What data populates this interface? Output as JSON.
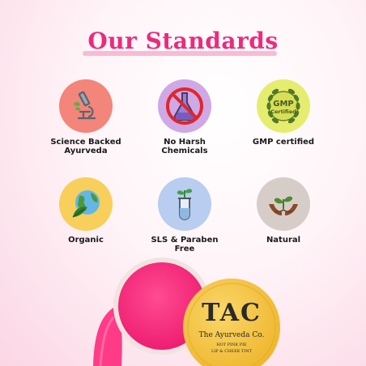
{
  "header": {
    "title": "Our Standards"
  },
  "standards": [
    {
      "label": "Science Backed\nAyurveda",
      "icon": "microscope-icon",
      "color": "#f3857a"
    },
    {
      "label": "No Harsh\nChemicals",
      "icon": "no-chemicals-icon",
      "color": "#cfa8e6"
    },
    {
      "label": "GMP certified",
      "icon": "gmp-badge-icon",
      "color": "#e6ec6e"
    },
    {
      "label": "Organic",
      "icon": "globe-leaf-icon",
      "color": "#f7cf5a"
    },
    {
      "label": "SLS & Paraben\nFree",
      "icon": "test-tube-leaf-icon",
      "color": "#b8cdef"
    },
    {
      "label": "Natural",
      "icon": "hands-plant-icon",
      "color": "#d6cdc8"
    }
  ],
  "gmp_badge": {
    "line1": "GMP",
    "line2": "Certified"
  },
  "product": {
    "brand": "TAC",
    "company": "The Ayurveda Co.",
    "name": "HOT PINK PIE",
    "type": "LIP & CHEEK TINT",
    "colors": {
      "tint": "#ff2d7f",
      "lid": "#f6c343"
    }
  }
}
